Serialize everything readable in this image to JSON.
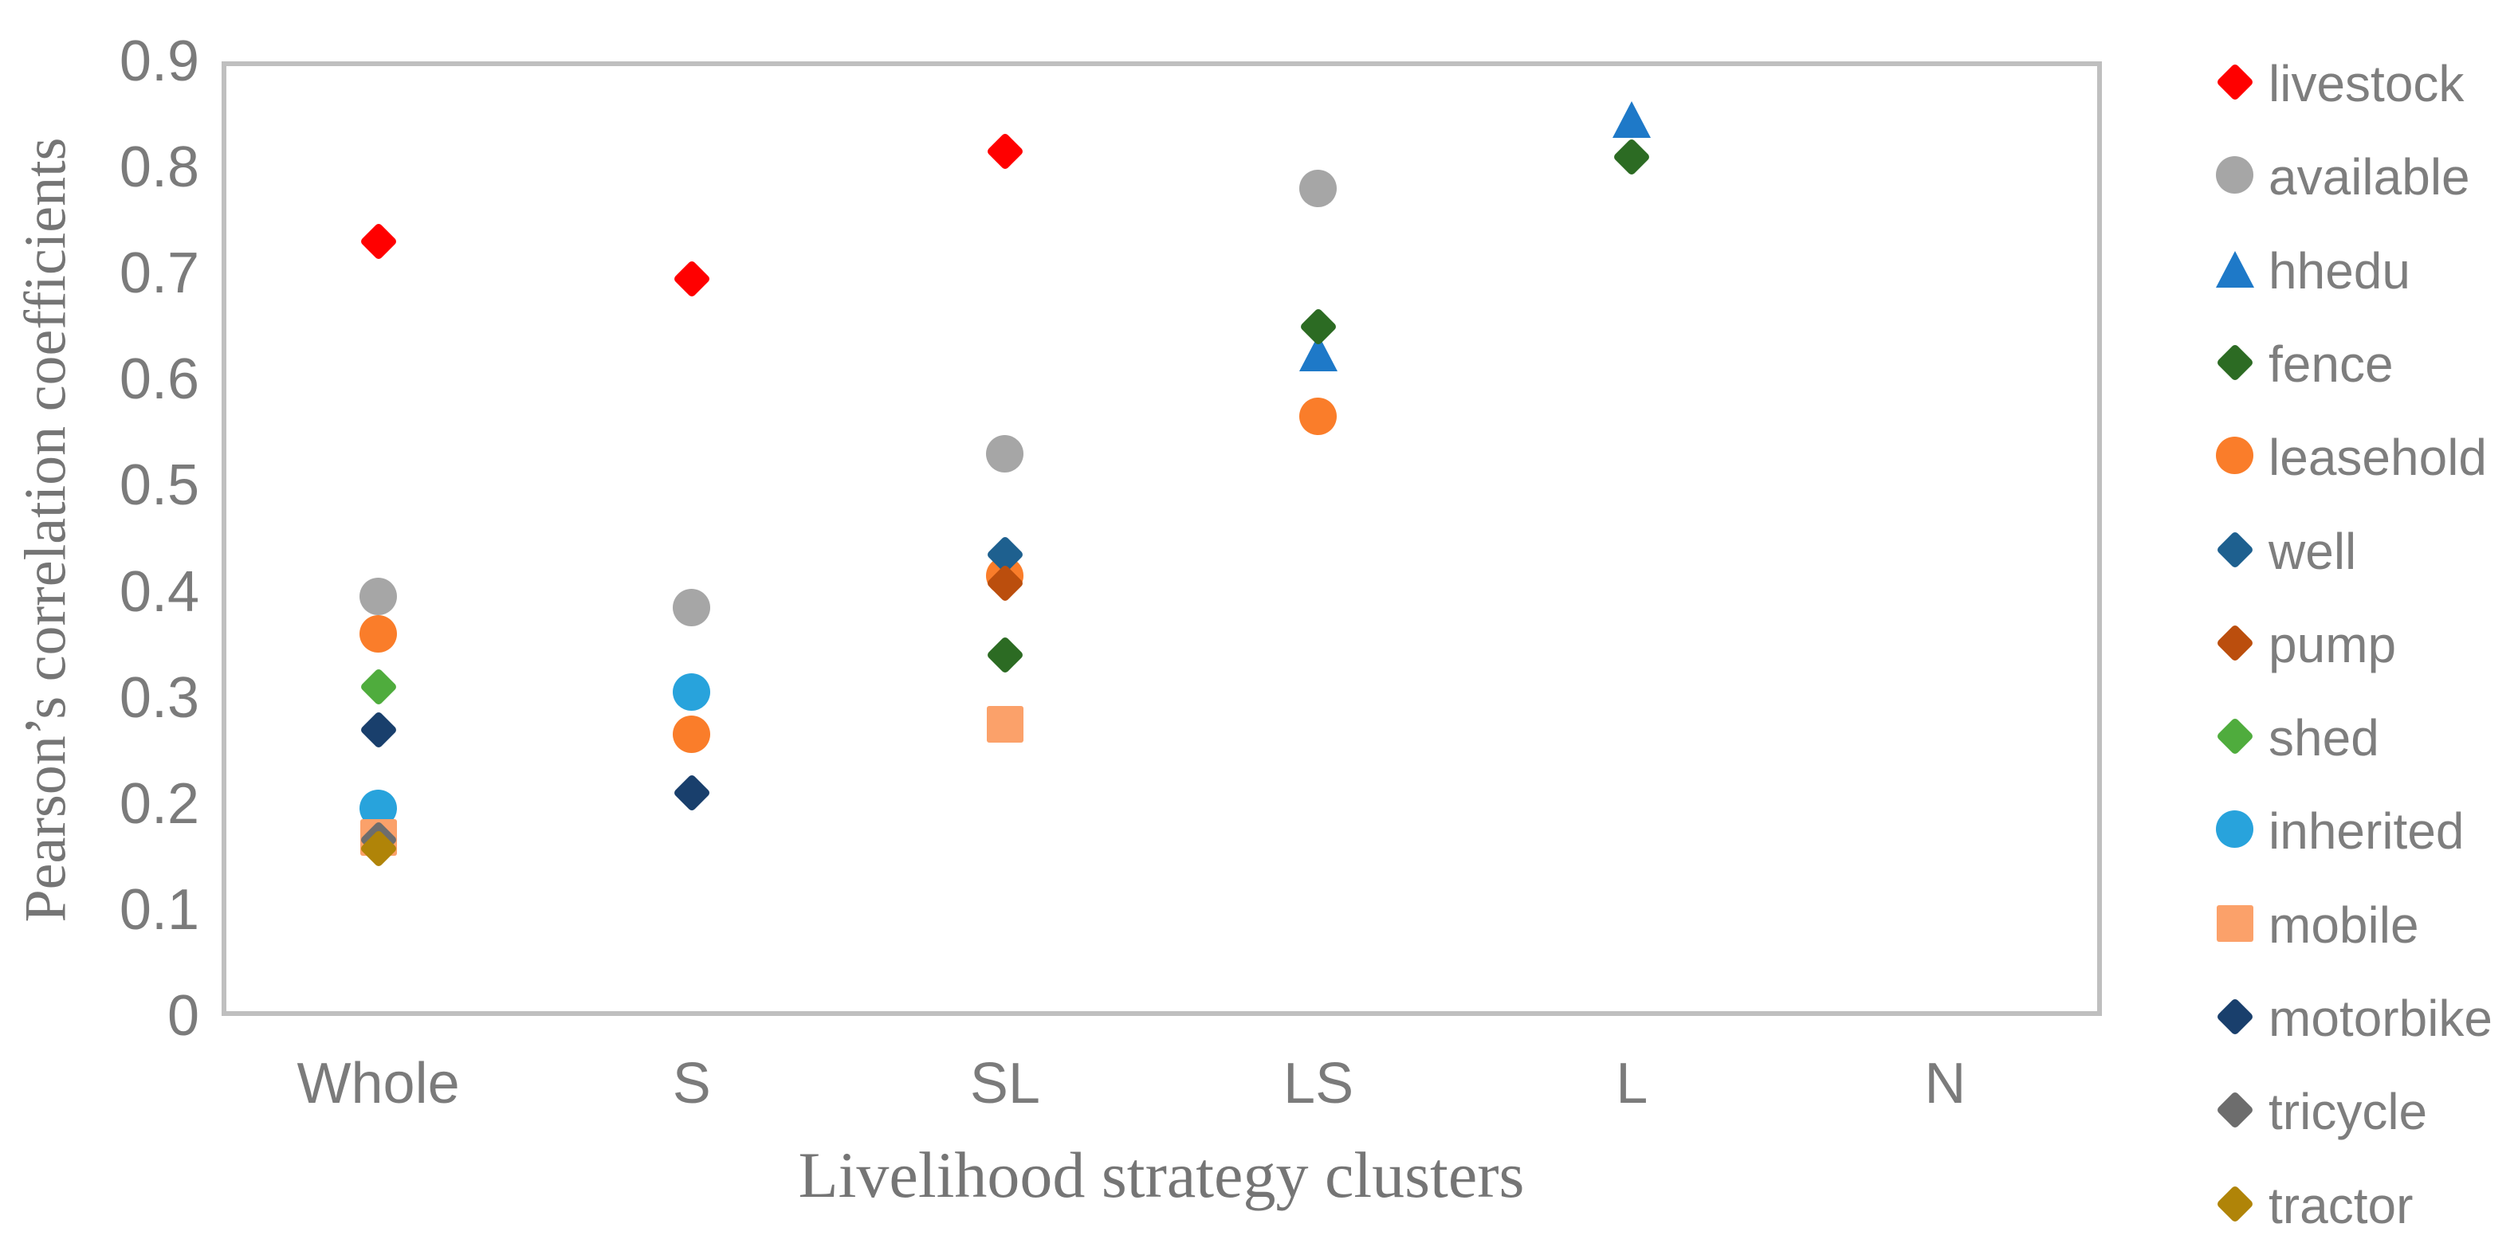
{
  "chart_data": {
    "type": "scatter",
    "title": "",
    "xlabel": "Livelihood strategy clusters",
    "ylabel": "Pearson’s correlation coefficients",
    "categories": [
      "Whole",
      "S",
      "SL",
      "LS",
      "L",
      "N"
    ],
    "y_tick_values": [
      0.9,
      0.8,
      0.7,
      0.6,
      0.5,
      0.4,
      0.3,
      0.2,
      0.1,
      0
    ],
    "y_tick_labels": [
      "0.9",
      "0.8",
      "0.7",
      "0.6",
      "0.5",
      "0.4",
      "0.3",
      "0.2",
      "0.1",
      "0"
    ],
    "ylim": [
      0,
      0.9
    ],
    "grid": false,
    "legend_position": "right",
    "plot_border_color": "#BFBFBF",
    "text_color": "#7B7B7B",
    "series": [
      {
        "name": "livestock",
        "marker": "diamond",
        "color": "#FF0000",
        "points": {
          "Whole": 0.73,
          "S": 0.695,
          "SL": 0.815
        }
      },
      {
        "name": "available",
        "marker": "circle",
        "color": "#A6A6A6",
        "points": {
          "Whole": 0.395,
          "S": 0.385,
          "SL": 0.53,
          "LS": 0.78
        }
      },
      {
        "name": "hhedu",
        "marker": "triangle",
        "color": "#1E79C8",
        "points": {
          "LS": 0.625,
          "L": 0.845
        }
      },
      {
        "name": "fence",
        "marker": "diamond",
        "color": "#2C6B23",
        "points": {
          "SL": 0.34,
          "LS": 0.65,
          "L": 0.81
        }
      },
      {
        "name": "leasehold",
        "marker": "circle",
        "color": "#FA7D2A",
        "points": {
          "Whole": 0.36,
          "S": 0.265,
          "SL": 0.415,
          "LS": 0.565
        }
      },
      {
        "name": "well",
        "marker": "diamond",
        "color": "#1E608F",
        "points": {
          "SL": 0.435
        }
      },
      {
        "name": "pump",
        "marker": "diamond",
        "color": "#BB4E0D",
        "points": {
          "SL": 0.408
        }
      },
      {
        "name": "shed",
        "marker": "diamond",
        "color": "#4FAC3D",
        "points": {
          "Whole": 0.31
        }
      },
      {
        "name": "inherited",
        "marker": "circle",
        "color": "#28A3DC",
        "points": {
          "Whole": 0.195,
          "S": 0.305
        }
      },
      {
        "name": "mobile",
        "marker": "square",
        "color": "#FBA16A",
        "points": {
          "Whole": 0.168,
          "SL": 0.275
        }
      },
      {
        "name": "motorbike",
        "marker": "diamond",
        "color": "#193F6C",
        "points": {
          "Whole": 0.27,
          "S": 0.21
        }
      },
      {
        "name": "tricycle",
        "marker": "diamond",
        "color": "#6D6D6D",
        "points": {
          "Whole": 0.166
        }
      },
      {
        "name": "tractor",
        "marker": "diamond",
        "color": "#B08408",
        "points": {
          "Whole": 0.158
        }
      }
    ]
  }
}
